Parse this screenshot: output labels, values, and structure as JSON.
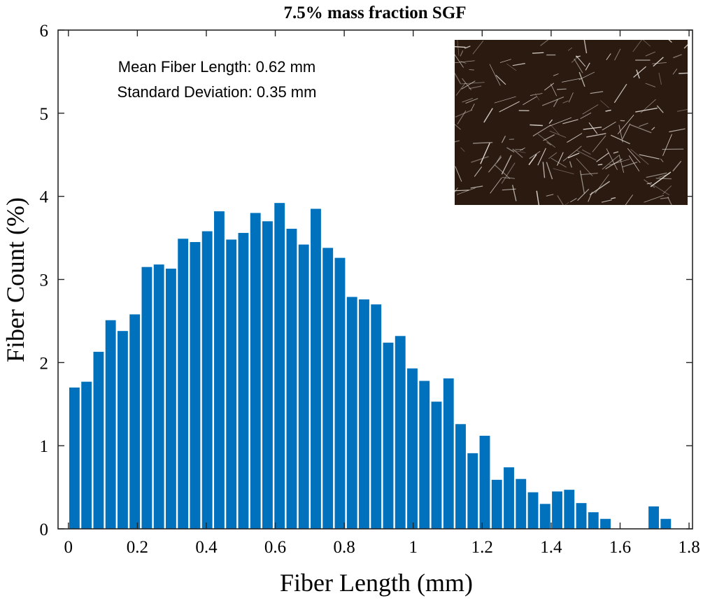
{
  "chart_data": {
    "type": "bar",
    "title": "7.5% mass fraction SGF",
    "xlabel": "Fiber Length (mm)",
    "ylabel": "Fiber Count (%)",
    "xlim": [
      -0.03,
      1.81
    ],
    "ylim": [
      0,
      6
    ],
    "xticks": [
      "0",
      "0.2",
      "0.4",
      "0.6",
      "0.8",
      "1",
      "1.2",
      "1.4",
      "1.6",
      "1.8"
    ],
    "yticks": [
      "0",
      "1",
      "2",
      "3",
      "4",
      "5",
      "6"
    ],
    "bin_width": 0.035,
    "bin_starts": [
      0,
      0.035,
      0.07,
      0.105,
      0.14,
      0.175,
      0.21,
      0.245,
      0.28,
      0.315,
      0.35,
      0.385,
      0.42,
      0.455,
      0.49,
      0.525,
      0.56,
      0.595,
      0.63,
      0.665,
      0.7,
      0.735,
      0.77,
      0.805,
      0.84,
      0.875,
      0.91,
      0.945,
      0.98,
      1.015,
      1.05,
      1.085,
      1.12,
      1.155,
      1.19,
      1.225,
      1.26,
      1.295,
      1.33,
      1.365,
      1.4,
      1.435,
      1.47,
      1.505,
      1.54,
      1.575,
      1.61,
      1.645,
      1.68,
      1.715
    ],
    "values": [
      1.7,
      1.77,
      2.13,
      2.51,
      2.38,
      2.58,
      3.15,
      3.18,
      3.13,
      3.49,
      3.45,
      3.58,
      3.82,
      3.48,
      3.56,
      3.8,
      3.7,
      3.92,
      3.61,
      3.42,
      3.85,
      3.38,
      3.26,
      2.79,
      2.76,
      2.7,
      2.24,
      2.32,
      1.93,
      1.78,
      1.53,
      1.81,
      1.26,
      0.91,
      1.12,
      0.59,
      0.74,
      0.6,
      0.44,
      0.3,
      0.45,
      0.47,
      0.31,
      0.2,
      0.12,
      0,
      0,
      0,
      0.27,
      0.12
    ],
    "bar_color": "#0072bd",
    "grid": false,
    "box": true,
    "annotations": [
      "Mean Fiber Length: 0.62 mm",
      "Standard Deviation: 0.35 mm"
    ]
  },
  "inset": {
    "description_icon": "micrograph-image",
    "background_color": "#2a1a10",
    "fiber_color": "#e8e2dc"
  }
}
